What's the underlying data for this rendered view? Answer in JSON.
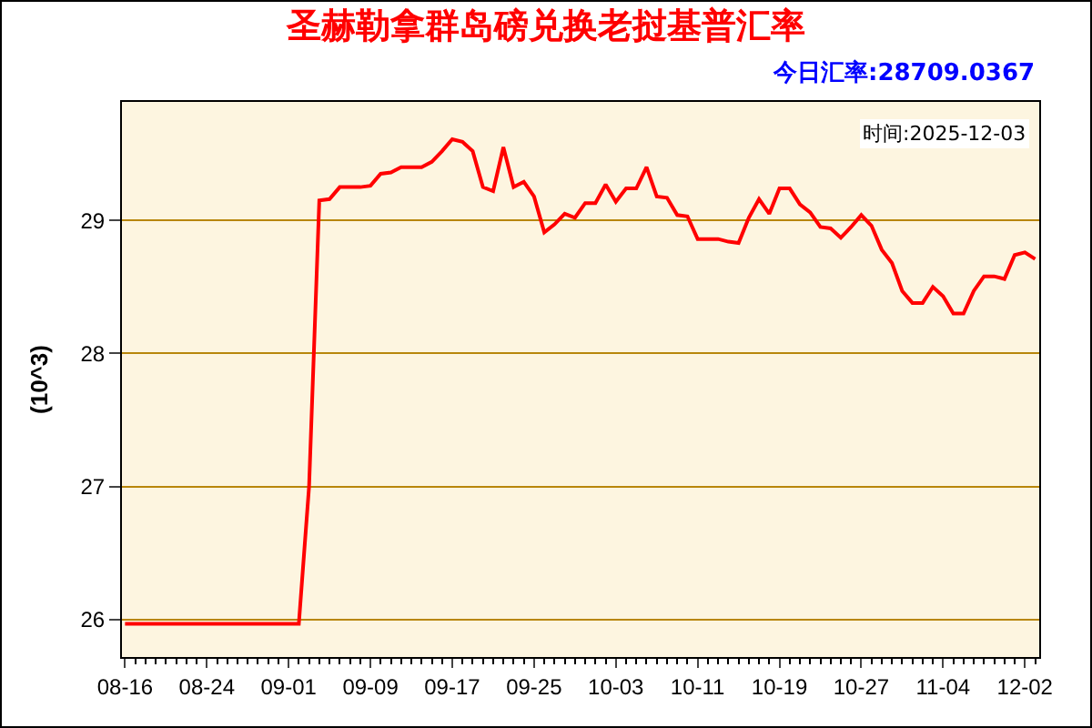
{
  "chart_data": {
    "type": "line",
    "title": "圣赫勒拿群岛磅兑换老挝基普汇率",
    "ylabel": "(10^3)",
    "annotations": [
      "今日汇率:28709.0367",
      "时间:2025-12-03"
    ],
    "categories": [
      "08-16",
      null,
      null,
      null,
      null,
      null,
      null,
      null,
      "08-24",
      null,
      null,
      null,
      null,
      null,
      null,
      null,
      "09-01",
      null,
      null,
      null,
      null,
      null,
      null,
      null,
      "09-09",
      null,
      null,
      null,
      null,
      null,
      null,
      null,
      "09-17",
      null,
      null,
      null,
      null,
      null,
      null,
      null,
      "09-25",
      null,
      null,
      null,
      null,
      null,
      null,
      null,
      "10-03",
      null,
      null,
      null,
      null,
      null,
      null,
      null,
      "10-11",
      null,
      null,
      null,
      null,
      null,
      null,
      null,
      "10-19",
      null,
      null,
      null,
      null,
      null,
      null,
      null,
      "10-27",
      null,
      null,
      null,
      null,
      null,
      null,
      null,
      "11-04",
      null,
      null,
      null,
      null,
      null,
      null,
      null,
      "12-02",
      null
    ],
    "series": [
      {
        "color": "#ff0000",
        "values": [
          25.97,
          25.97,
          25.97,
          25.97,
          25.97,
          25.97,
          25.97,
          25.97,
          25.97,
          25.97,
          25.97,
          25.97,
          25.97,
          25.97,
          25.97,
          25.97,
          25.97,
          25.97,
          27.0,
          29.15,
          29.16,
          29.25,
          29.25,
          29.25,
          29.26,
          29.35,
          29.36,
          29.4,
          29.4,
          29.4,
          29.44,
          29.52,
          29.61,
          29.59,
          29.52,
          29.25,
          29.22,
          29.55,
          29.25,
          29.29,
          29.18,
          28.91,
          28.97,
          29.05,
          29.02,
          29.13,
          29.13,
          29.27,
          29.14,
          29.24,
          29.24,
          29.4,
          29.18,
          29.17,
          29.04,
          29.03,
          28.86,
          28.86,
          28.86,
          28.84,
          28.83,
          29.02,
          29.16,
          29.05,
          29.24,
          29.24,
          29.12,
          29.06,
          28.95,
          28.94,
          28.87,
          28.95,
          29.04,
          28.96,
          28.78,
          28.68,
          28.47,
          28.38,
          28.38,
          28.5,
          28.43,
          28.3,
          28.3,
          28.47,
          28.58,
          28.58,
          28.56,
          28.74,
          28.76,
          28.71
        ]
      }
    ],
    "ylim": [
      25.72,
      29.89
    ],
    "yticks": [
      26,
      27,
      28,
      29
    ],
    "grid": "y"
  }
}
